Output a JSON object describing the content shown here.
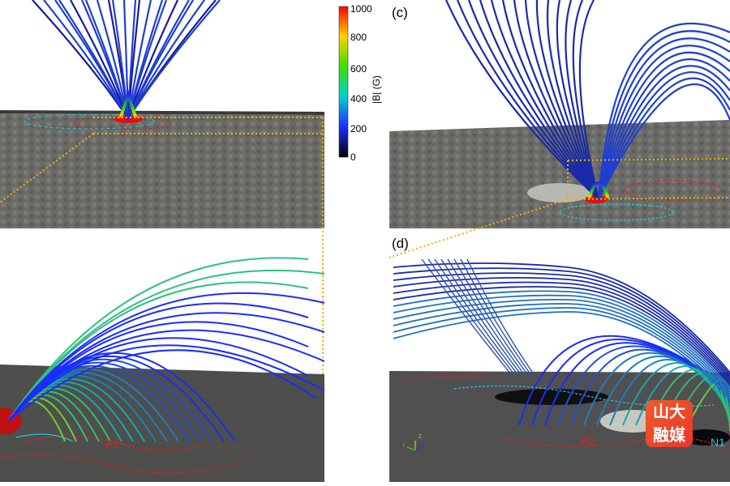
{
  "panel_labels": {
    "c": "(c)",
    "d": "(d)"
  },
  "colorbar": {
    "title": "|B| (G)",
    "ticks": [
      "1000",
      "800",
      "600",
      "400",
      "200",
      "0"
    ],
    "stops": [
      "#ff0000",
      "#ffd200",
      "#38e000",
      "#00d0d0",
      "#1a2cff",
      "#000000"
    ]
  },
  "region_labels": {
    "p1": "P1",
    "p2": "P2",
    "n1": "N1"
  },
  "axes_gizmo": {
    "z": "Z",
    "y": "Y",
    "x": "X"
  },
  "watermark": {
    "line1": "山大",
    "line2": "融媒"
  },
  "colors": {
    "positive_contour": "#e02020",
    "negative_contour": "#22c8e0",
    "guide_line": "#e8b400"
  }
}
